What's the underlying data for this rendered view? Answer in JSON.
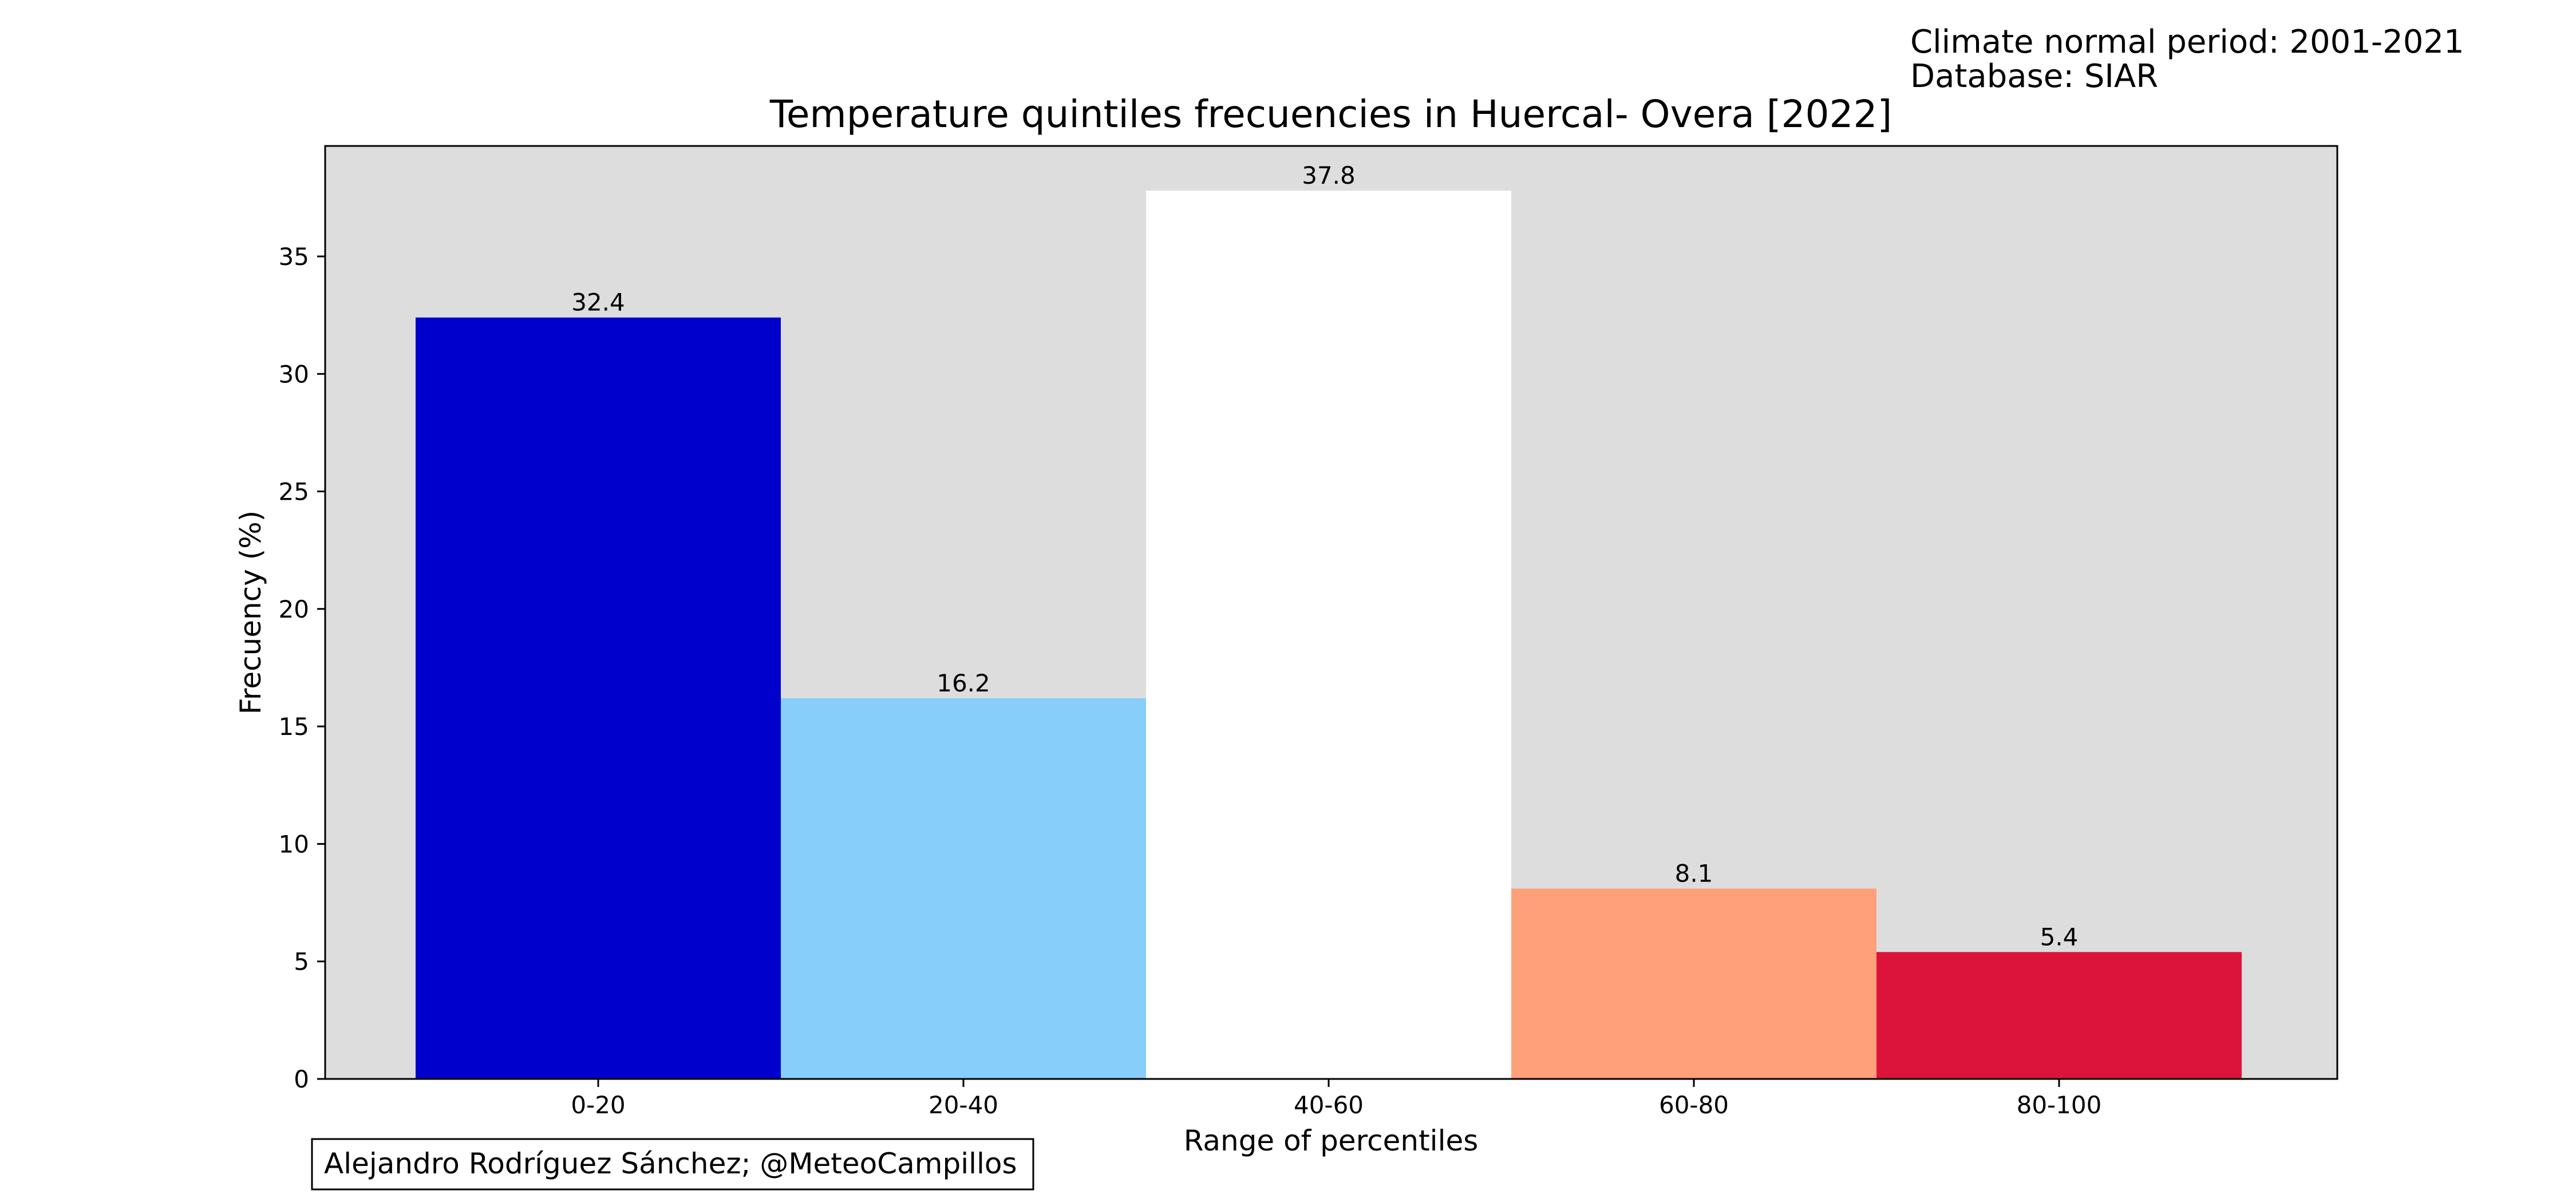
{
  "header": {
    "line1": "Climate normal period: 2001-2021",
    "line2": "Database: SIAR"
  },
  "credit": "Alejandro Rodríguez Sánchez; @MeteoCampillos",
  "chart_data": {
    "type": "bar",
    "title": "Temperature quintiles frecuencies in Huercal- Overa [2022]",
    "xlabel": "Range of percentiles",
    "ylabel": "Frecuency (%)",
    "categories": [
      "0-20",
      "20-40",
      "40-60",
      "60-80",
      "80-100"
    ],
    "values": [
      32.4,
      16.2,
      37.8,
      8.1,
      5.4
    ],
    "value_labels": [
      "32.4",
      "16.2",
      "37.8",
      "8.1",
      "5.4"
    ],
    "colors": [
      "#0000cd",
      "#87cefa",
      "#ffffff",
      "#ffa07a",
      "#dc143c"
    ],
    "plot_background": "#dddddd",
    "ylim": [
      0,
      39.7
    ],
    "yticks": [
      0,
      5,
      10,
      15,
      20,
      25,
      30,
      35
    ],
    "ytick_labels": [
      "0",
      "5",
      "10",
      "15",
      "20",
      "25",
      "30",
      "35"
    ],
    "grid": false,
    "legend": "none"
  }
}
